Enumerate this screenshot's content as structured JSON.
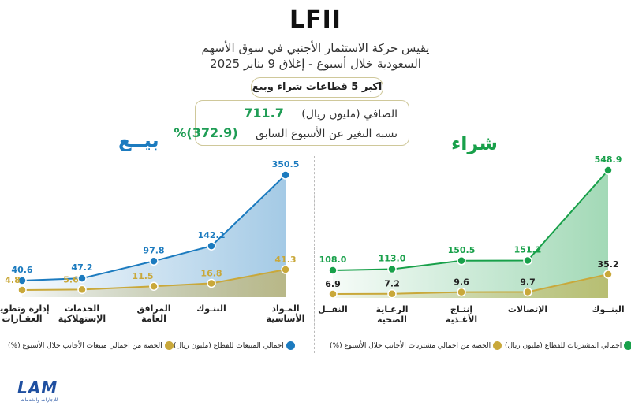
{
  "header": {
    "title": "LFII",
    "subtitle_line1": "يقيس حركة الاستثمار الأجنبي في سوق الأسهم",
    "subtitle_line2": "السعودية خلال أسبوع - إغلاق 9 يناير 2025",
    "top_label": "اكبر 5 قطاعات شراء وبيع"
  },
  "summary": {
    "net_label": "الصافي (مليون ريال)",
    "net_value": "711.7",
    "change_label": "نسبة التغير عن الأسبوع السابق",
    "change_value": "(372.9)%"
  },
  "sell_panel": {
    "title": "بيــع",
    "legend_total": "اجمالي المبيعات للقطاع (مليون ريال)",
    "legend_share": "الحصة من اجمالي مبيعات الأجانب خلال الأسبوع (%)"
  },
  "buy_panel": {
    "title": "شراء",
    "legend_total": "اجمالي المشتريات للقطاع (مليون ريال)",
    "legend_share": "الحصة من اجمالي مشتريات الأجانب خلال الأسبوع (%)"
  },
  "colors": {
    "sell": "#1c7bbf",
    "buy": "#18a04a",
    "share": "#c9a83a"
  },
  "logo": {
    "name": "LAM",
    "tagline": "للإجارات والخدمات"
  },
  "chart_data": [
    {
      "type": "area",
      "title": "بيــع",
      "categories": [
        "إدارة وتطوير العقـارات",
        "الخدمات الإستهلاكية",
        "المرافق العامة",
        "البنـوك",
        "المـواد الأساسية"
      ],
      "series": [
        {
          "name": "اجمالي المبيعات للقطاع (مليون ريال)",
          "values": [
            40.6,
            47.2,
            97.8,
            142.1,
            350.5
          ],
          "labels": [
            "40.6",
            "47.2",
            "97.8",
            "142.1",
            "350.5"
          ]
        },
        {
          "name": "الحصة من اجمالي مبيعات الأجانب خلال الأسبوع (%)",
          "values": [
            4.8,
            5.6,
            11.5,
            16.8,
            41.3
          ],
          "labels": [
            "4.8",
            "5.6",
            "11.5",
            "16.8",
            "41.3"
          ]
        }
      ]
    },
    {
      "type": "area",
      "title": "شراء",
      "categories": [
        "النقــل",
        "الرعـاية الصحية",
        "إنتـاج الأغـذية",
        "الإتصالات",
        "البنــوك"
      ],
      "series": [
        {
          "name": "اجمالي المشتريات للقطاع (مليون ريال)",
          "values": [
            108.0,
            113.0,
            150.5,
            151.2,
            548.9
          ],
          "labels": [
            "108.0",
            "113.0",
            "150.5",
            "151.2",
            "548.9"
          ]
        },
        {
          "name": "الحصة من اجمالي مشتريات الأجانب خلال الأسبوع (%)",
          "values": [
            6.9,
            7.2,
            9.6,
            9.7,
            35.2
          ],
          "labels": [
            "6.9",
            "7.2",
            "9.6",
            "9.7",
            "35.2"
          ]
        }
      ]
    }
  ]
}
